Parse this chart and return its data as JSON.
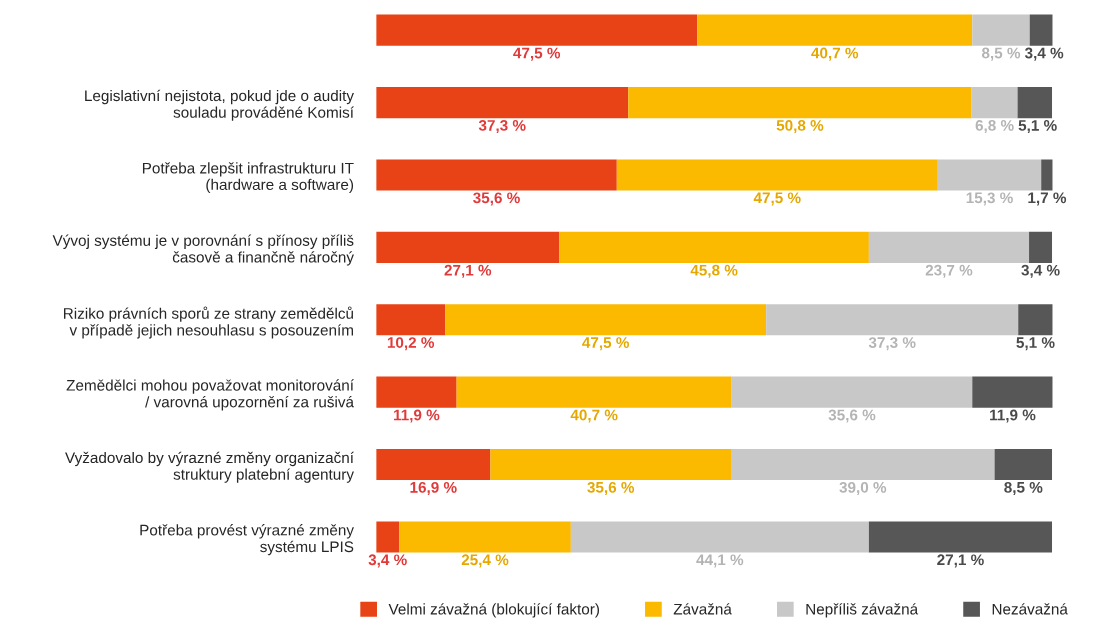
{
  "chart_data": {
    "type": "bar",
    "orientation": "horizontal",
    "stacked": true,
    "legend": "bottom",
    "grid": false,
    "tick_labels": "y",
    "categories": [
      null,
      "Legislativní nejistota, pokud jde o audity\nsouladu prováděné Komisí",
      "Potřeba zlepšit infrastrukturu IT\n(hardware a software)",
      "Vývoj systému je v porovnání s přínosy příliš\nčasově a finančně náročný",
      "Riziko právních sporů ze strany zemědělců\nv případě jejich nesouhlasu s posouzením",
      "Zemědělci mohou považovat monitorování\n/ varovná upozornění za rušivá",
      "Vyžadovalo by výrazné změny organizační\nstruktury platební agentury",
      "Potřeba provést výrazné změny\nsystému LPIS"
    ],
    "series": [
      {
        "name": "Velmi závažná (blokující faktor)",
        "color": "#e84316",
        "values": [
          47.5,
          37.3,
          35.6,
          27.1,
          10.2,
          11.9,
          16.9,
          3.4
        ],
        "value_labels": [
          "47,5 %",
          "37,3 %",
          "35,6 %",
          "27,1 %",
          "10,2 %",
          "11,9 %",
          "16,9 %",
          "3,4 %"
        ]
      },
      {
        "name": "Závažná",
        "color": "#fbb900",
        "values": [
          40.7,
          50.8,
          47.5,
          45.8,
          47.5,
          40.7,
          35.6,
          25.4
        ],
        "value_labels": [
          "40,7 %",
          "50,8 %",
          "47,5 %",
          "45,8 %",
          "47,5 %",
          "40,7 %",
          "35,6 %",
          "25,4 %"
        ]
      },
      {
        "name": "Nepříliš závažná",
        "color": "#c8c8c8",
        "values": [
          8.5,
          6.8,
          15.3,
          23.7,
          37.3,
          35.6,
          39.0,
          44.1
        ],
        "value_labels": [
          "8,5 %",
          "6,8 %",
          "15,3 %",
          "23,7 %",
          "37,3 %",
          "35,6 %",
          "39,0 %",
          "44,1 %"
        ]
      },
      {
        "name": "Nezávažná",
        "color": "#575757",
        "values": [
          3.4,
          5.1,
          1.7,
          3.4,
          5.1,
          11.9,
          8.5,
          27.1
        ],
        "value_labels": [
          "3,4 %",
          "5,1 %",
          "1,7 %",
          "3,4 %",
          "5,1 %",
          "11,9 %",
          "8,5 %",
          "27,1 %"
        ]
      }
    ]
  }
}
